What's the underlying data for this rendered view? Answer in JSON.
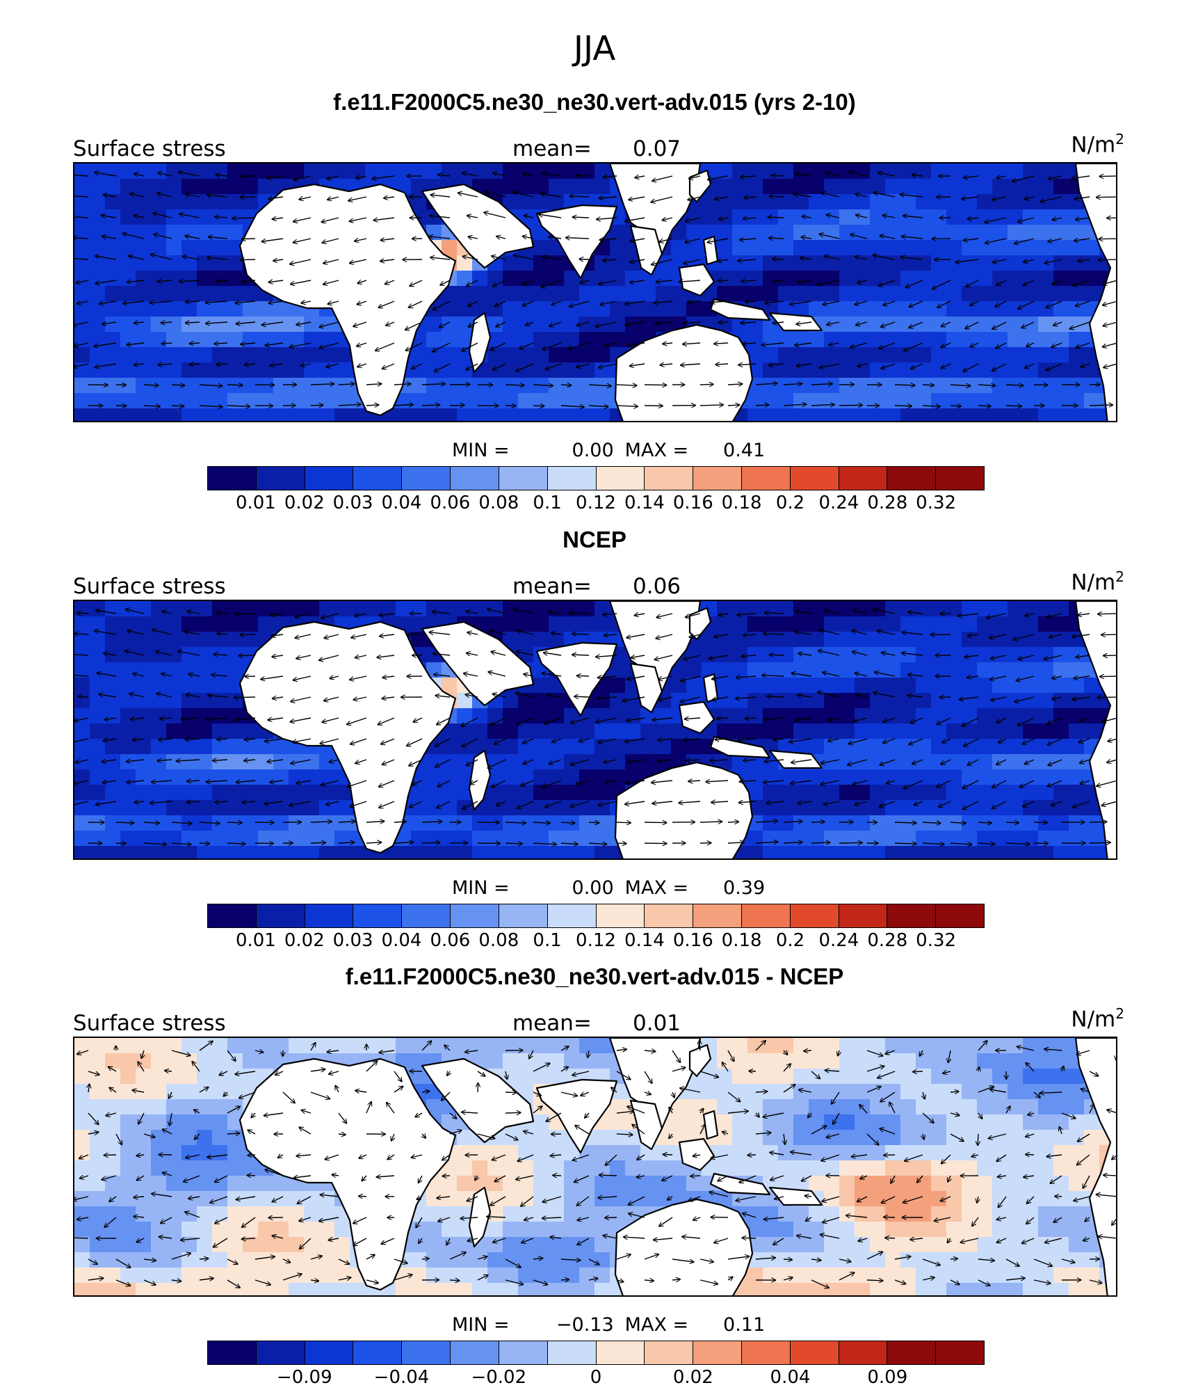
{
  "header": {
    "season": "JJA"
  },
  "panels": [
    {
      "title": "f.e11.F2000C5.ne30_ne30.vert-adv.015 (yrs 2-10)",
      "variable": "Surface stress",
      "mean_label": "mean=",
      "mean_value": "0.07",
      "units_base": "N/m",
      "units_exp": "2",
      "min_label": "MIN =",
      "min_value": "0.00",
      "max_label": "MAX =",
      "max_value": "0.41",
      "scale": "seq",
      "tick_labels": [
        "0.01",
        "0.02",
        "0.03",
        "0.04",
        "0.06",
        "0.08",
        "0.1",
        "0.12",
        "0.14",
        "0.16",
        "0.18",
        "0.2",
        "0.24",
        "0.28",
        "0.32"
      ]
    },
    {
      "title": "NCEP",
      "variable": "Surface stress",
      "mean_label": "mean=",
      "mean_value": "0.06",
      "units_base": "N/m",
      "units_exp": "2",
      "min_label": "MIN =",
      "min_value": "0.00",
      "max_label": "MAX =",
      "max_value": "0.39",
      "scale": "seq",
      "tick_labels": [
        "0.01",
        "0.02",
        "0.03",
        "0.04",
        "0.06",
        "0.08",
        "0.1",
        "0.12",
        "0.14",
        "0.16",
        "0.18",
        "0.2",
        "0.24",
        "0.28",
        "0.32"
      ]
    },
    {
      "title": "f.e11.F2000C5.ne30_ne30.vert-adv.015 - NCEP",
      "variable": "Surface stress",
      "mean_label": "mean=",
      "mean_value": "0.01",
      "units_base": "N/m",
      "units_exp": "2",
      "min_label": "MIN =",
      "min_value": "−0.13",
      "max_label": "MAX =",
      "max_value": "0.11",
      "scale": "diff",
      "tick_labels": [
        "−0.09",
        "−0.04",
        "−0.02",
        "0",
        "0.02",
        "0.04",
        "0.09"
      ]
    }
  ],
  "colorbar_colors": [
    "#08006b",
    "#0a1fa8",
    "#0d35d4",
    "#1d52e8",
    "#3d72ee",
    "#6692f2",
    "#97b5f5",
    "#c9dcfa",
    "#fbe6d6",
    "#f9c7aa",
    "#f4a07c",
    "#ee7550",
    "#e24a2c",
    "#c2281a",
    "#8e0a0a"
  ]
}
